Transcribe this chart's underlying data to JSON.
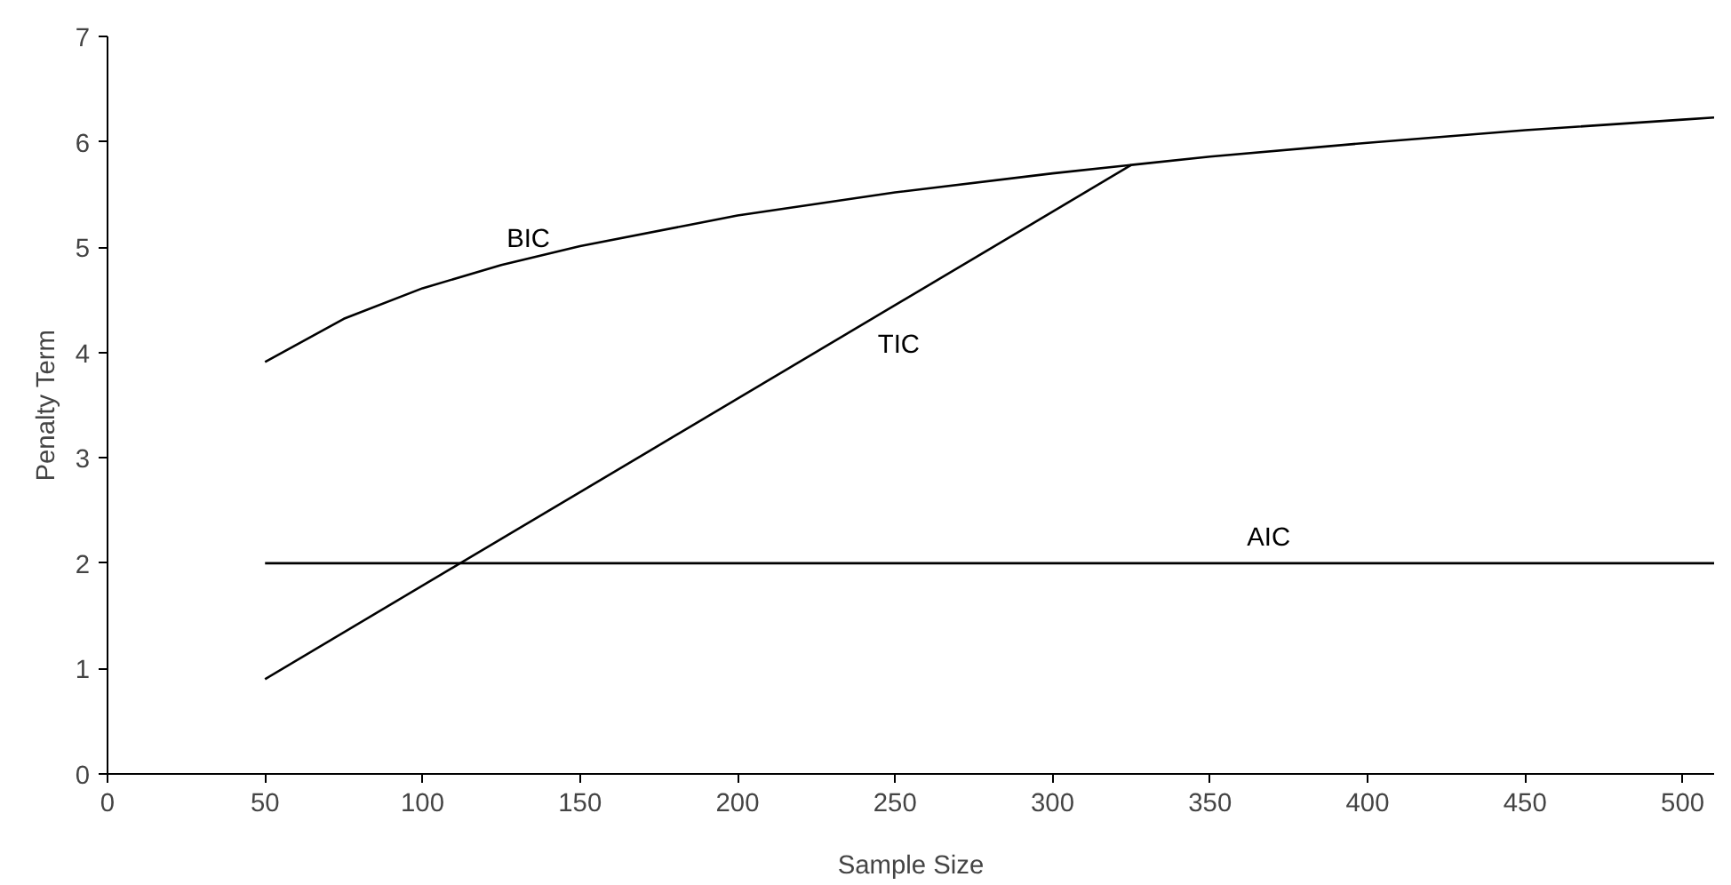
{
  "chart_data": {
    "type": "line",
    "xlabel": "Sample Size",
    "ylabel": "Penalty Term",
    "xlim": [
      0,
      510
    ],
    "ylim": [
      0,
      7
    ],
    "xticks": [
      0,
      50,
      100,
      150,
      200,
      250,
      300,
      350,
      400,
      450,
      500
    ],
    "yticks": [
      0,
      1,
      2,
      3,
      4,
      5,
      6,
      7
    ],
    "marker": "none",
    "line_style": "solid",
    "series": [
      {
        "color": "#000000",
        "x": [
          50,
          75,
          100,
          125,
          150,
          200,
          250,
          300,
          325,
          350,
          400,
          450,
          500,
          510
        ],
        "values": [
          3.91,
          4.32,
          4.61,
          4.83,
          5.01,
          5.3,
          5.52,
          5.7,
          5.78,
          5.86,
          5.99,
          6.11,
          6.21,
          6.23
        ]
      },
      {
        "color": "#000000",
        "x": [
          50,
          325
        ],
        "values": [
          0.9,
          5.78
        ]
      },
      {
        "color": "#000000",
        "x": [
          50,
          510
        ],
        "values": [
          2,
          2
        ]
      }
    ],
    "annotations": [
      {
        "text": "BIC",
        "x": 125,
        "y": 4.83
      },
      {
        "text": "TIC",
        "x": 240,
        "y": 4.27
      },
      {
        "text": "AIC",
        "x": 360,
        "y": 2
      }
    ]
  }
}
